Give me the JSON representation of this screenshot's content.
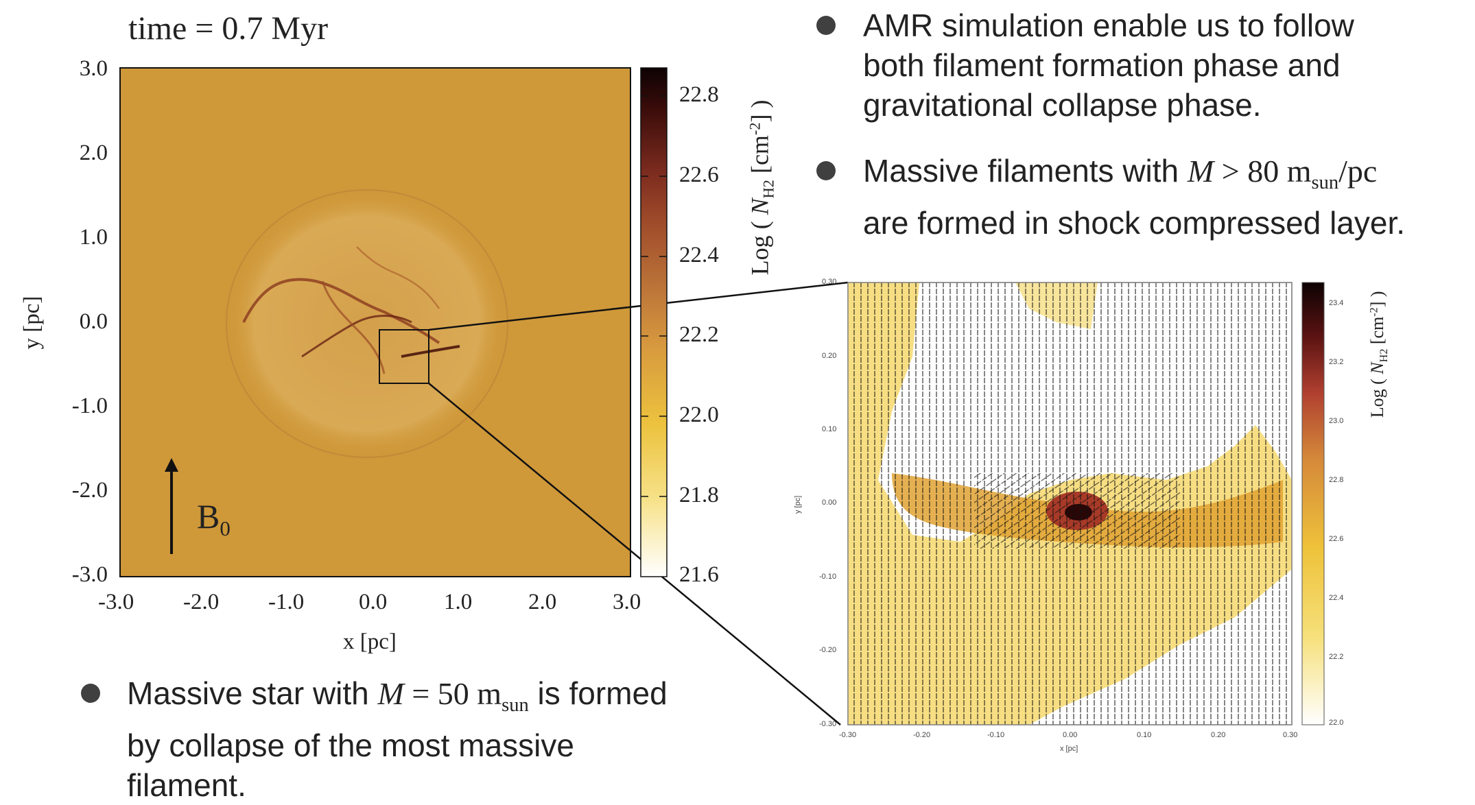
{
  "main_plot": {
    "title": "time = 0.7 Myr",
    "x_label": "x [pc]",
    "y_label": "y [pc]",
    "x_ticks": [
      "-3.0",
      "-2.0",
      "-1.0",
      "0.0",
      "1.0",
      "2.0",
      "3.0"
    ],
    "y_ticks": [
      "3.0",
      "2.0",
      "1.0",
      "0.0",
      "-1.0",
      "-2.0",
      "-3.0"
    ],
    "colorbar_label_prefix": "Log ( ",
    "colorbar_label_N": "N",
    "colorbar_label_sub": "H2",
    "colorbar_label_unit": " [cm",
    "colorbar_label_exp": "-2",
    "colorbar_label_suffix": "] )",
    "colorbar_ticks": [
      "22.8",
      "22.6",
      "22.4",
      "22.2",
      "22.0",
      "21.8",
      "21.6"
    ],
    "field_label": "B",
    "field_sub": "0",
    "background_color": "#cf9839"
  },
  "zoom_plot": {
    "x_label": "x [pc]",
    "y_label": "y [pc]",
    "x_ticks": [
      "-0.30",
      "-0.20",
      "-0.10",
      "0.00",
      "0.10",
      "0.20",
      "0.30"
    ],
    "y_ticks": [
      "0.30",
      "0.20",
      "0.10",
      "0.00",
      "-0.10",
      "-0.20",
      "-0.30"
    ],
    "colorbar_ticks": [
      "23.4",
      "23.2",
      "23.0",
      "22.8",
      "22.6",
      "22.4",
      "22.2",
      "22.0"
    ]
  },
  "bullets": {
    "b1_line1": "AMR simulation enable us to follow",
    "b1_line2": "both filament formation phase and",
    "b1_line3": "gravitational collapse phase.",
    "b2_line1_a": "Massive filaments with ",
    "b2_M": "M",
    "b2_cond": " > 80 m",
    "b2_sub": "sun",
    "b2_tail": "/pc",
    "b2_line2": "are formed in shock compressed layer.",
    "b3_line1_a": "Massive star with ",
    "b3_M": "M",
    "b3_cond": " = 50 m",
    "b3_sub": "sun",
    "b3_tail": " is formed",
    "b3_line2": "by collapse of the most massive",
    "b3_line3": "filament."
  }
}
